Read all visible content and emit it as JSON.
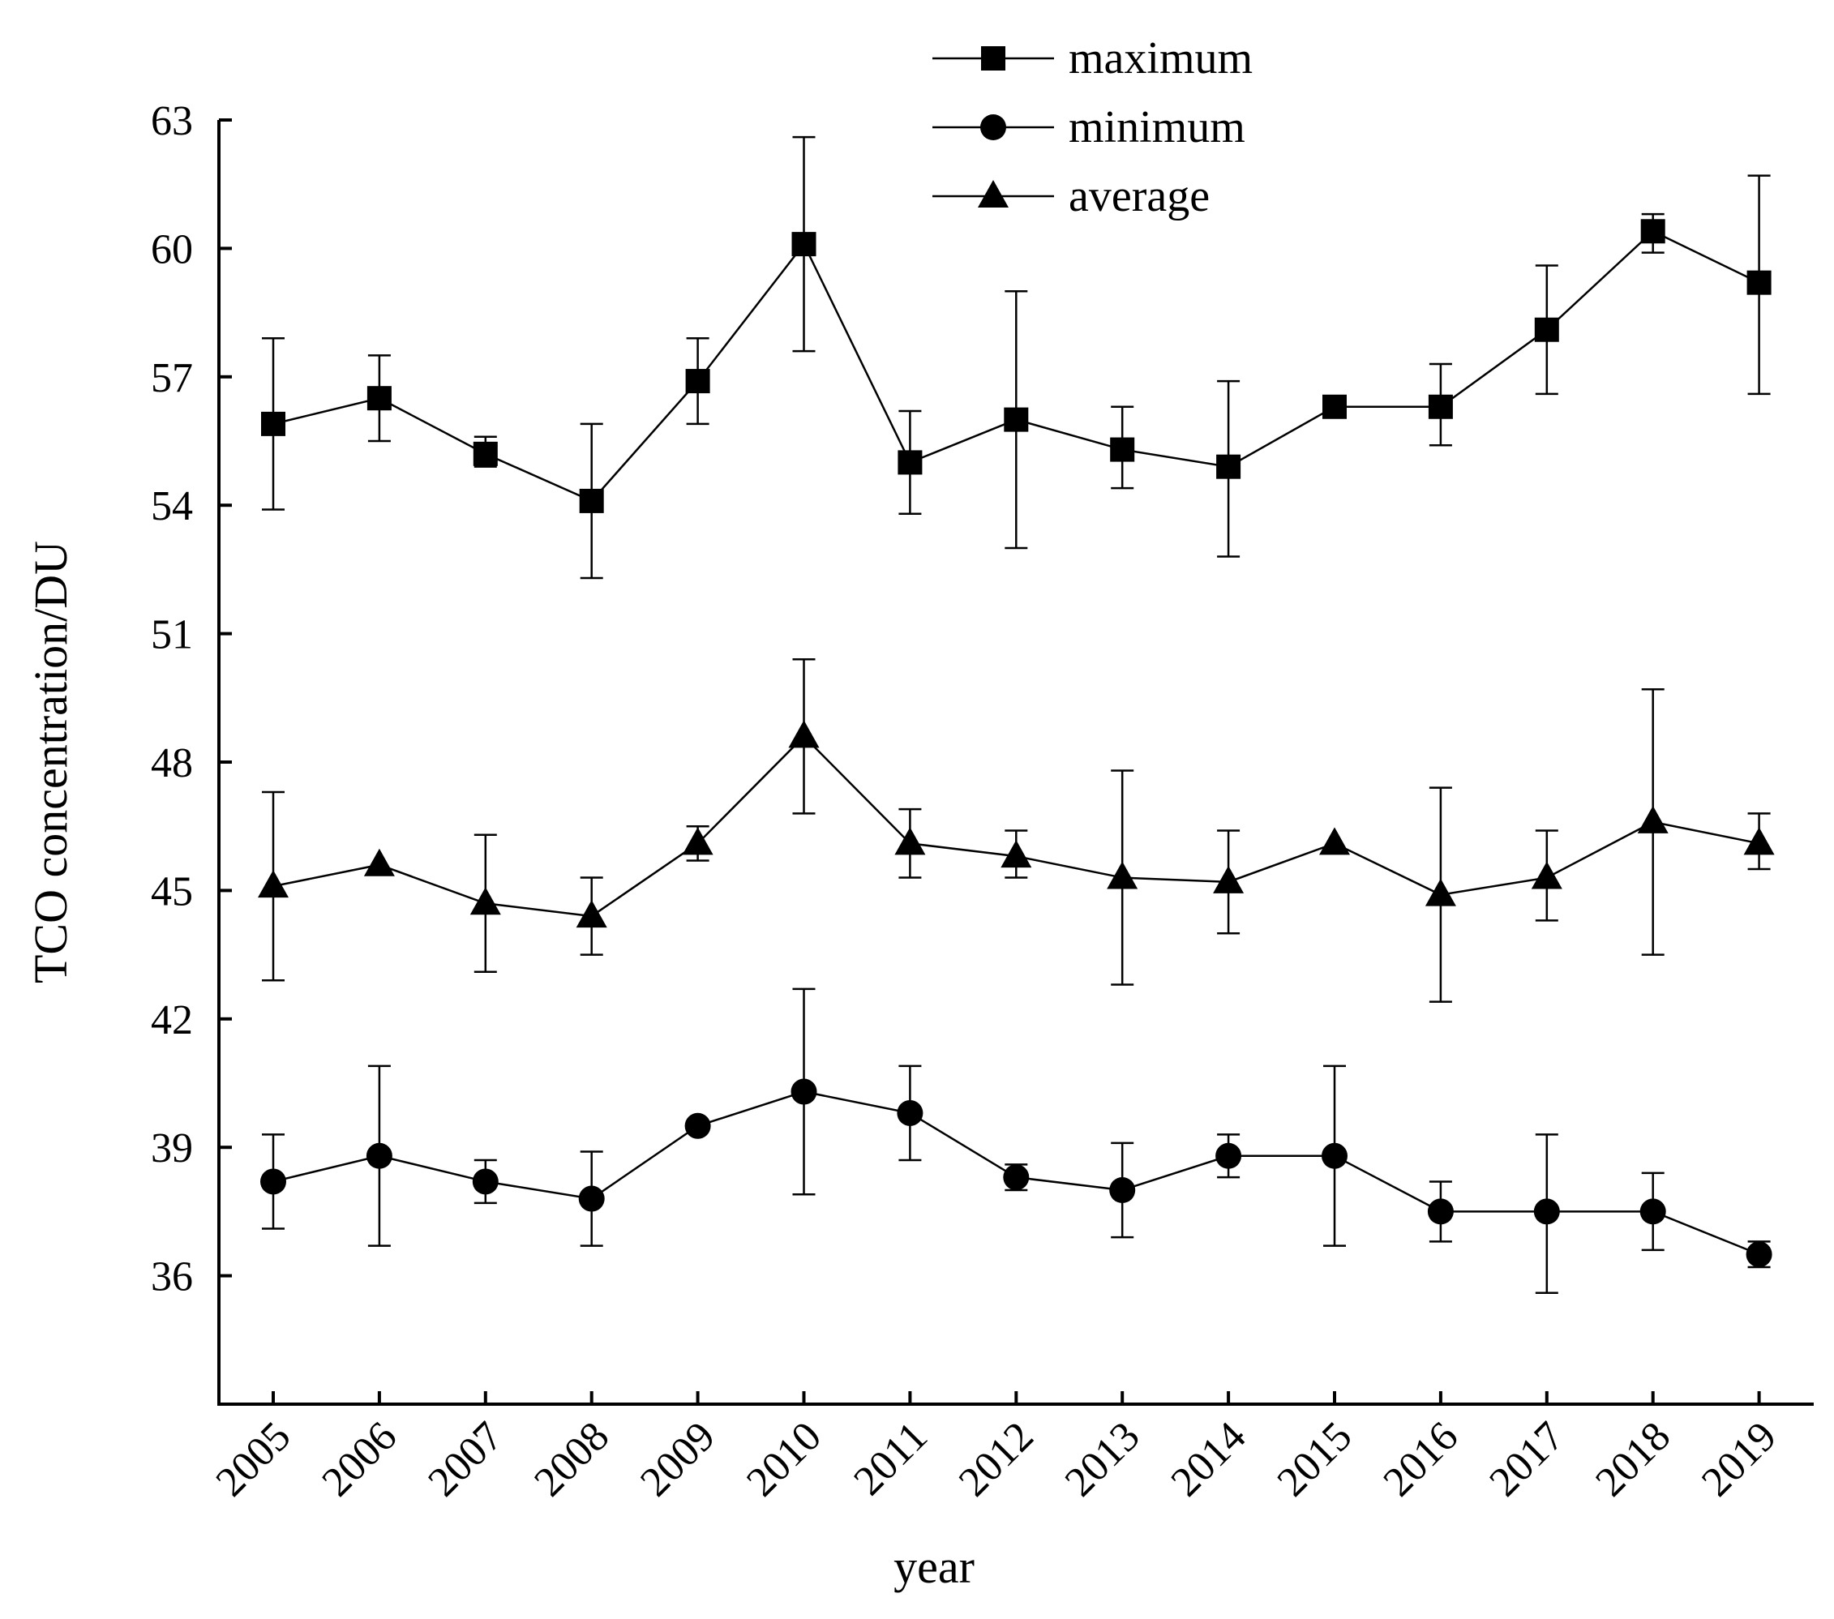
{
  "chart_data": {
    "type": "line",
    "title": "",
    "xlabel": "year",
    "ylabel": "TCO concentration/DU",
    "ylim": [
      33,
      63
    ],
    "yticks": [
      36,
      39,
      42,
      45,
      48,
      51,
      54,
      57,
      60,
      63
    ],
    "categories": [
      "2005",
      "2006",
      "2007",
      "2008",
      "2009",
      "2010",
      "2011",
      "2012",
      "2013",
      "2014",
      "2015",
      "2016",
      "2017",
      "2018",
      "2019"
    ],
    "legend_position": "top-center",
    "series": [
      {
        "name": "maximum",
        "marker": "square",
        "values": [
          55.9,
          56.5,
          55.2,
          54.1,
          56.9,
          60.1,
          55.0,
          56.0,
          55.3,
          54.9,
          56.3,
          56.3,
          58.1,
          60.4,
          59.2
        ],
        "err_low": [
          53.9,
          55.5,
          54.9,
          52.3,
          55.9,
          57.6,
          53.8,
          53.0,
          54.4,
          52.8,
          56.3,
          55.4,
          56.6,
          59.9,
          56.6
        ],
        "err_high": [
          57.9,
          57.5,
          55.6,
          55.9,
          57.9,
          62.6,
          56.2,
          59.0,
          56.3,
          56.9,
          56.3,
          57.3,
          59.6,
          60.8,
          61.7
        ]
      },
      {
        "name": "minimum",
        "marker": "circle",
        "values": [
          38.2,
          38.8,
          38.2,
          37.8,
          39.5,
          40.3,
          39.8,
          38.3,
          38.0,
          38.8,
          38.8,
          37.5,
          37.5,
          37.5,
          36.5
        ],
        "err_low": [
          37.1,
          36.7,
          37.7,
          36.7,
          39.5,
          37.9,
          38.7,
          38.0,
          36.9,
          38.3,
          36.7,
          36.8,
          35.6,
          36.6,
          36.2
        ],
        "err_high": [
          39.3,
          40.9,
          38.7,
          38.9,
          39.5,
          42.7,
          40.9,
          38.6,
          39.1,
          39.3,
          40.9,
          38.2,
          39.3,
          38.4,
          36.8
        ]
      },
      {
        "name": "average",
        "marker": "triangle",
        "values": [
          45.1,
          45.6,
          44.7,
          44.4,
          46.1,
          48.6,
          46.1,
          45.8,
          45.3,
          45.2,
          46.1,
          44.9,
          45.3,
          46.6,
          46.1
        ],
        "err_low": [
          42.9,
          45.6,
          43.1,
          43.5,
          45.7,
          46.8,
          45.3,
          45.3,
          42.8,
          44.0,
          46.1,
          42.4,
          44.3,
          43.5,
          45.5
        ],
        "err_high": [
          47.3,
          45.6,
          46.3,
          45.3,
          46.5,
          50.4,
          46.9,
          46.4,
          47.8,
          46.4,
          46.1,
          47.4,
          46.4,
          49.7,
          46.8
        ]
      }
    ]
  }
}
